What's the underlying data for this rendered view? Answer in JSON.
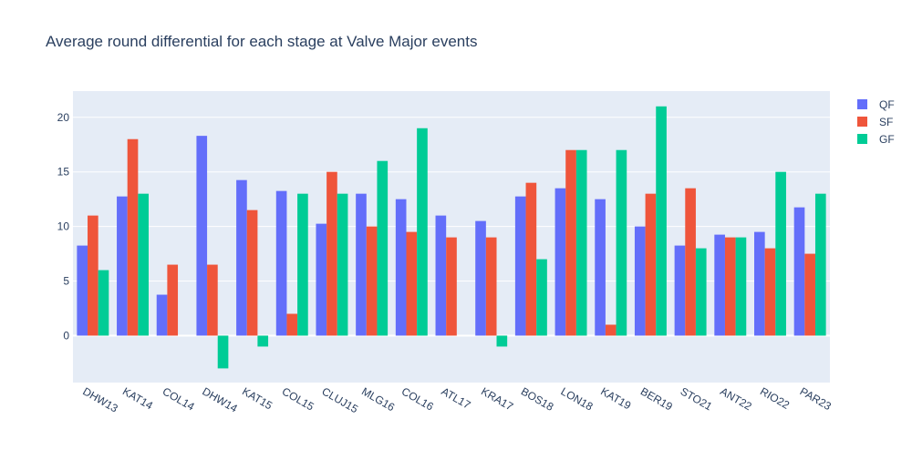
{
  "chart_data": {
    "type": "bar",
    "title": "Average round differential for each stage at Valve Major events",
    "xlabel": "",
    "ylabel": "",
    "ylim": [
      -4.3,
      22.4
    ],
    "yticks": [
      0,
      5,
      10,
      15,
      20
    ],
    "grid": true,
    "legend_position": "top-right",
    "categories": [
      "DHW13",
      "KAT14",
      "COL14",
      "DHW14",
      "KAT15",
      "COL15",
      "CLUJ15",
      "MLG16",
      "COL16",
      "ATL17",
      "KRA17",
      "BOS18",
      "LON18",
      "KAT19",
      "BER19",
      "STO21",
      "ANT22",
      "RIO22",
      "PAR23"
    ],
    "series": [
      {
        "name": "QF",
        "color": "#636efa",
        "values": [
          8.25,
          12.75,
          3.75,
          18.3,
          14.25,
          13.25,
          10.25,
          13,
          12.5,
          11,
          10.5,
          12.75,
          13.5,
          12.5,
          10,
          8.25,
          9.25,
          9.5,
          11.75
        ]
      },
      {
        "name": "SF",
        "color": "#ef553b",
        "values": [
          11,
          18,
          6.5,
          6.5,
          11.5,
          2,
          15,
          10,
          9.5,
          9,
          9,
          14,
          17,
          1,
          13,
          13.5,
          9,
          8,
          7.5
        ]
      },
      {
        "name": "GF",
        "color": "#00cc96",
        "values": [
          6,
          13,
          null,
          -3,
          -1,
          13,
          13,
          16,
          19,
          null,
          -1,
          7,
          17,
          17,
          21,
          8,
          9,
          15,
          13
        ]
      }
    ]
  }
}
